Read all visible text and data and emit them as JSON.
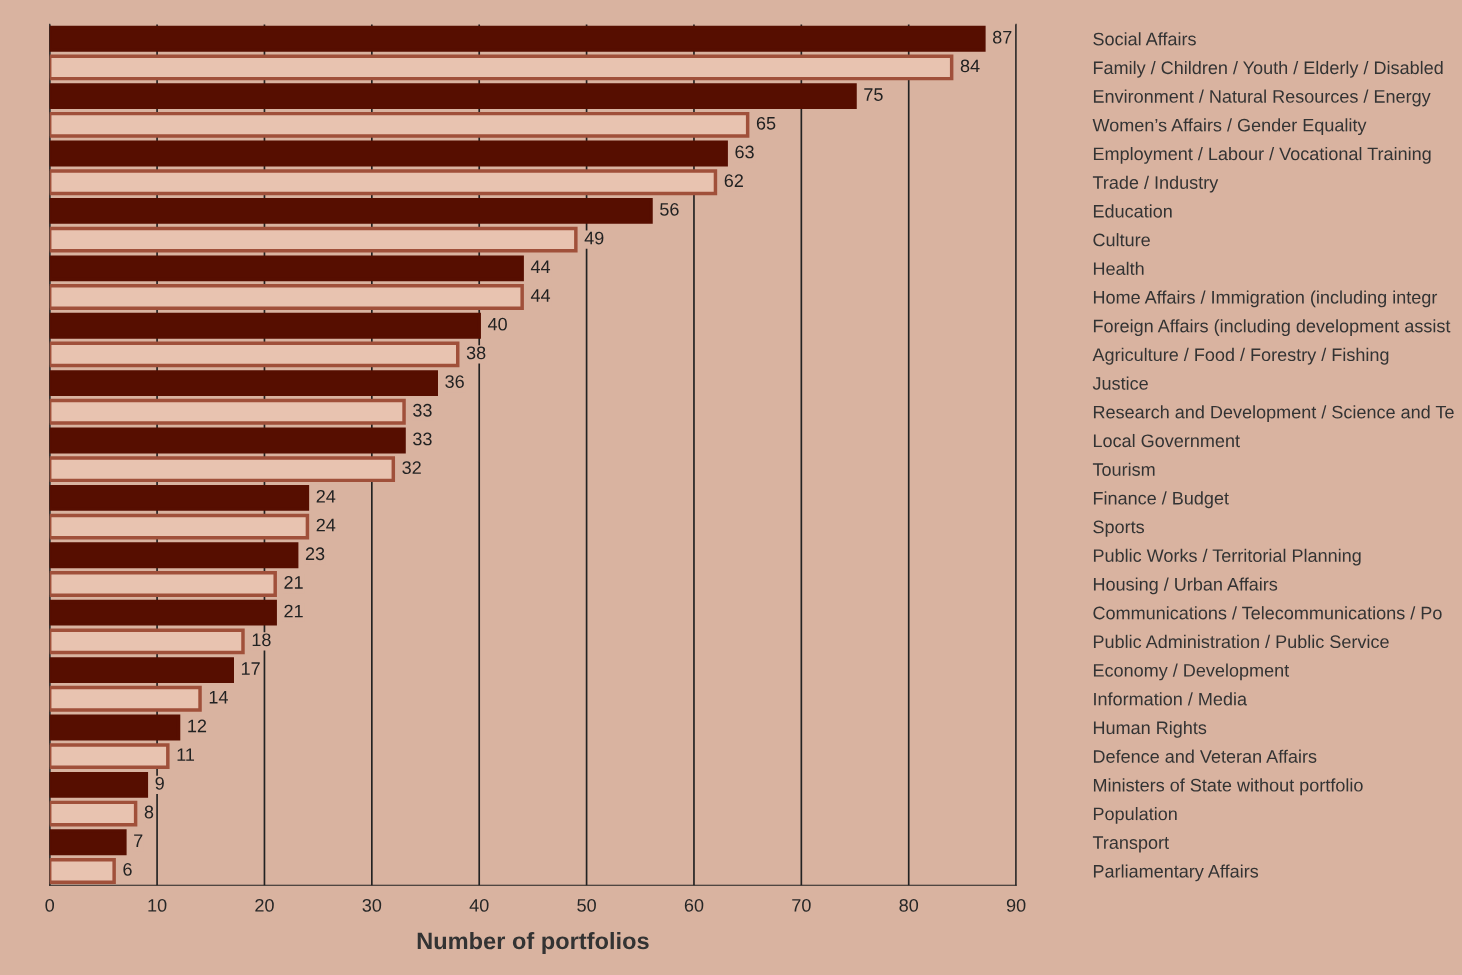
{
  "chart_data": {
    "type": "bar",
    "orientation": "horizontal",
    "xlabel": "Number of portfolios",
    "categories": [
      "Social Affairs",
      "Family / Children / Youth / Elderly / Disabled",
      "Environment / Natural Resources / Energy",
      "Women’s Affairs / Gender Equality",
      "Employment / Labour / Vocational Training",
      "Trade / Industry",
      "Education",
      "Culture",
      "Health",
      "Home Affairs / Immigration (including integr",
      "Foreign Affairs (including development assist",
      "Agriculture / Food / Forestry / Fishing",
      "Justice",
      "Research and Development / Science and Te",
      "Local Government",
      "Tourism",
      "Finance / Budget",
      "Sports",
      "Public Works / Territorial Planning",
      "Housing / Urban Affairs",
      "Communications / Telecommunications / Po",
      "Public Administration / Public Service",
      "Economy / Development",
      "Information / Media",
      "Human Rights",
      "Defence and Veteran Affairs",
      "Ministers of State without portfolio",
      "Population",
      "Transport",
      "Parliamentary Affairs"
    ],
    "values": [
      87,
      84,
      75,
      65,
      63,
      62,
      56,
      49,
      44,
      44,
      40,
      38,
      36,
      33,
      33,
      32,
      24,
      24,
      23,
      21,
      21,
      18,
      17,
      14,
      12,
      11,
      9,
      8,
      7,
      6
    ],
    "colors": [
      "#560e00",
      "#e8c3b0",
      "#560e00",
      "#e8c3b0",
      "#560e00",
      "#e8c3b0",
      "#560e00",
      "#e8c3b0",
      "#560e00",
      "#e8c3b0",
      "#560e00",
      "#e8c3b0",
      "#560e00",
      "#e8c3b0",
      "#560e00",
      "#e8c3b0",
      "#560e00",
      "#e8c3b0",
      "#560e00",
      "#e8c3b0",
      "#560e00",
      "#e8c3b0",
      "#560e00",
      "#e8c3b0",
      "#560e00",
      "#e8c3b0",
      "#560e00",
      "#e8c3b0",
      "#560e00",
      "#e8c3b0"
    ],
    "xlim": [
      0,
      90
    ],
    "xticks": [
      0,
      10,
      20,
      30,
      40,
      50,
      60,
      70,
      80,
      90
    ],
    "grid": "x",
    "data_labels": true,
    "legend": false
  }
}
